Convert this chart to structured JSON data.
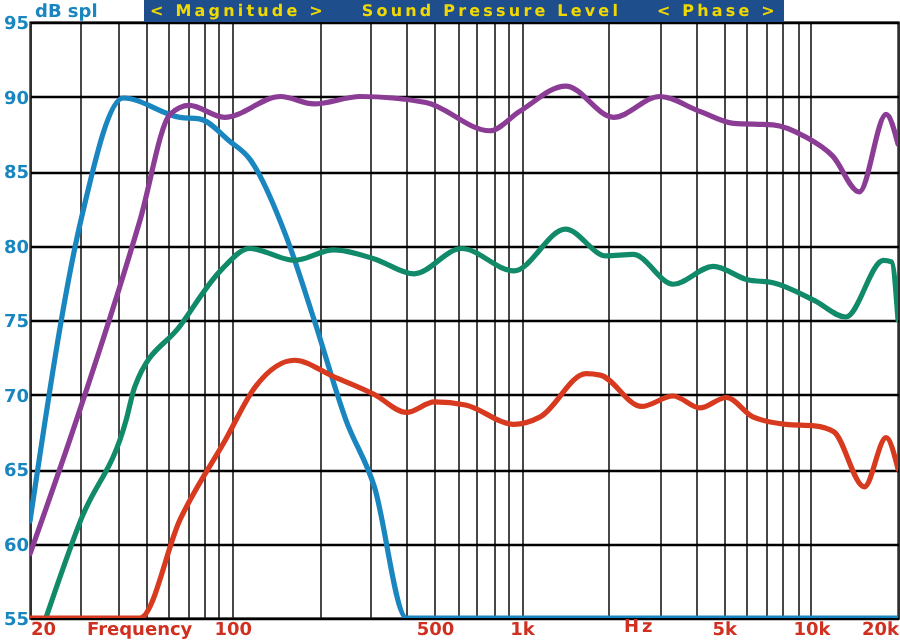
{
  "chart_data": {
    "type": "line",
    "title": "Sound Pressure Level",
    "xlabel": "Frequency",
    "ylabel": "dB spl",
    "annotations": [
      "< Magnitude >",
      "< Phase >",
      "Hz"
    ],
    "log": "x",
    "grid": true,
    "xlim": [
      20,
      20000
    ],
    "ylim": [
      55,
      95
    ],
    "xticks": [
      20,
      {
        "value": 30,
        "label": null
      },
      {
        "value": 40,
        "label": null
      },
      {
        "value": 50,
        "label": null
      },
      {
        "value": 60,
        "label": null
      },
      {
        "value": 70,
        "label": null
      },
      {
        "value": 80,
        "label": null
      },
      {
        "value": 90,
        "label": null
      },
      100,
      {
        "value": 200,
        "label": null
      },
      {
        "value": 300,
        "label": null
      },
      {
        "value": 400,
        "label": null
      },
      500,
      {
        "value": 600,
        "label": null
      },
      {
        "value": 700,
        "label": null
      },
      {
        "value": 800,
        "label": null
      },
      {
        "value": 900,
        "label": null
      },
      {
        "value": 1000,
        "label": "1k"
      },
      {
        "value": 2000,
        "label": null
      },
      {
        "value": 3000,
        "label": null
      },
      {
        "value": 4000,
        "label": null
      },
      {
        "value": 5000,
        "label": "5k"
      },
      {
        "value": 6000,
        "label": null
      },
      {
        "value": 7000,
        "label": null
      },
      {
        "value": 8000,
        "label": null
      },
      {
        "value": 9000,
        "label": null
      },
      {
        "value": 10000,
        "label": "10k"
      },
      {
        "value": 20000,
        "label": "20k"
      }
    ],
    "yticks": [
      55,
      60,
      65,
      70,
      75,
      80,
      85,
      90,
      95
    ],
    "series": [
      {
        "color": "#1a86bf",
        "x": [
          20,
          30,
          42,
          66,
          77,
          98,
          115,
          153,
          192,
          247,
          310,
          400,
          20000
        ],
        "values": [
          61.5,
          81.7,
          89.9,
          88.6,
          88.5,
          87,
          85.8,
          80.7,
          75,
          68.3,
          63.8,
          55,
          55
        ]
      },
      {
        "color": "#8b3c95",
        "x": [
          20,
          27.5,
          48,
          61,
          71,
          94,
          147,
          192,
          277,
          467,
          776,
          985,
          1420,
          2080,
          3000,
          4130,
          5400,
          7400,
          9560,
          11900,
          14700,
          18200,
          20000
        ],
        "values": [
          59.3,
          67,
          81.7,
          88.8,
          89.4,
          88.6,
          90,
          89.5,
          90,
          89.6,
          87.7,
          89,
          90.7,
          88.6,
          90,
          89,
          88.2,
          88.1,
          87.3,
          86,
          83.6,
          88.8,
          86.8
        ]
      },
      {
        "color": "#108a68",
        "x": [
          22.7,
          30,
          43,
          46,
          66,
          91,
          115,
          164,
          224,
          310,
          425,
          620,
          940,
          1420,
          1960,
          2430,
          3340,
          4600,
          6040,
          7400,
          10300,
          13200,
          17800,
          19000,
          20000
        ],
        "values": [
          55,
          61.6,
          68.3,
          70.5,
          74.6,
          78.3,
          79.8,
          79,
          79.7,
          79.1,
          78.1,
          79.8,
          78.3,
          81.1,
          79.3,
          79.4,
          77.4,
          78.6,
          77.7,
          77.5,
          76.3,
          75.2,
          79,
          78.9,
          75
        ]
      },
      {
        "color": "#d73a1e",
        "x": [
          20,
          48,
          66,
          95,
          120,
          164,
          224,
          310,
          400,
          500,
          640,
          940,
          1160,
          1670,
          1870,
          2600,
          3340,
          4130,
          5100,
          6300,
          8200,
          10300,
          12000,
          15300,
          18200,
          20000
        ],
        "values": [
          55,
          55,
          61.6,
          67,
          70.5,
          72.3,
          71.2,
          70,
          68.8,
          69.5,
          69.3,
          68,
          68.5,
          71.4,
          71.3,
          69.2,
          69.9,
          69.1,
          69.8,
          68.5,
          68,
          67.9,
          67.5,
          63.8,
          67.1,
          65
        ]
      }
    ]
  }
}
